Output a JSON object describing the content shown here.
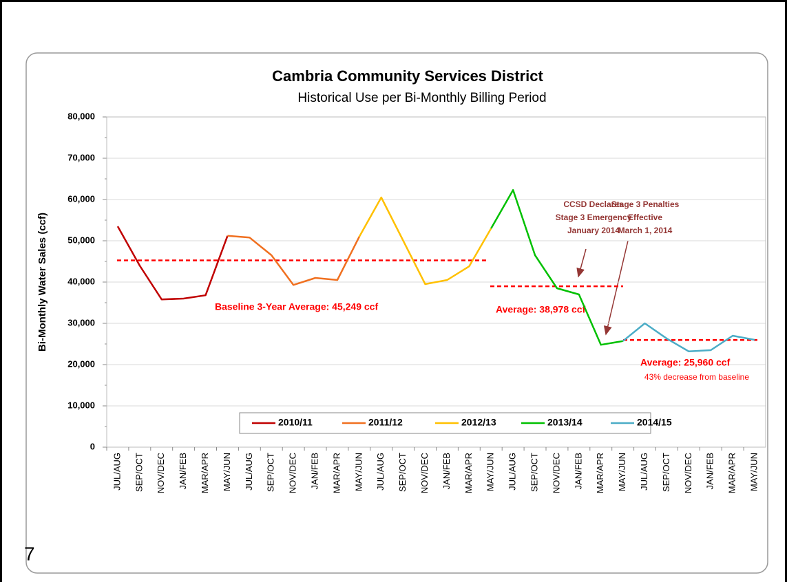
{
  "page_number": 7,
  "chart_data": {
    "type": "line",
    "title": "Cambria Community Services District",
    "subtitle": "Historical Use per Bi-Monthly Billing Period",
    "y_label": "Bi-Monthly Water Sales (ccf)",
    "categories": [
      "JUL/AUG",
      "SEP/OCT",
      "NOV/DEC",
      "JAN/FEB",
      "MAR/APR",
      "MAY/JUN",
      "JUL/AUG",
      "SEP/OCT",
      "NOV/DEC",
      "JAN/FEB",
      "MAR/APR",
      "MAY/JUN",
      "JUL/AUG",
      "SEP/OCT",
      "NOV/DEC",
      "JAN/FEB",
      "MAR/APR",
      "MAY/JUN",
      "JUL/AUG",
      "SEP/OCT",
      "NOV/DEC",
      "JAN/FEB",
      "MAR/APR",
      "MAY/JUN",
      "JUL/AUG",
      "SEP/OCT",
      "NOV/DEC",
      "JAN/FEB",
      "MAR/APR",
      "MAY/JUN"
    ],
    "series": [
      {
        "name": "2010/11",
        "color": "#c00000",
        "values": [
          53500,
          44000,
          35800,
          36000,
          36800,
          51200,
          null,
          null,
          null,
          null,
          null,
          null,
          null,
          null,
          null,
          null,
          null,
          null,
          null,
          null,
          null,
          null,
          null,
          null,
          null,
          null,
          null,
          null,
          null,
          null
        ]
      },
      {
        "name": "2011/12",
        "color": "#f07020",
        "values": [
          null,
          null,
          null,
          null,
          null,
          51200,
          50800,
          46500,
          39300,
          41000,
          40500,
          51000,
          null,
          null,
          null,
          null,
          null,
          null,
          null,
          null,
          null,
          null,
          null,
          null,
          null,
          null,
          null,
          null,
          null,
          null
        ]
      },
      {
        "name": "2012/13",
        "color": "#ffc000",
        "values": [
          null,
          null,
          null,
          null,
          null,
          null,
          null,
          null,
          null,
          null,
          null,
          51000,
          60500,
          50000,
          39500,
          40500,
          43800,
          53000,
          null,
          null,
          null,
          null,
          null,
          null,
          null,
          null,
          null,
          null,
          null,
          null
        ]
      },
      {
        "name": "2013/14",
        "color": "#00c000",
        "values": [
          null,
          null,
          null,
          null,
          null,
          null,
          null,
          null,
          null,
          null,
          null,
          null,
          null,
          null,
          null,
          null,
          null,
          53000,
          62300,
          46500,
          38500,
          37000,
          24800,
          25700,
          null,
          null,
          null,
          null,
          null,
          null
        ]
      },
      {
        "name": "2014/15",
        "color": "#4bacc6",
        "values": [
          null,
          null,
          null,
          null,
          null,
          null,
          null,
          null,
          null,
          null,
          null,
          null,
          null,
          null,
          null,
          null,
          null,
          null,
          null,
          null,
          null,
          null,
          null,
          25700,
          30000,
          26300,
          23200,
          23500,
          27000,
          26000
        ]
      }
    ],
    "reference_lines": [
      {
        "value": 45249,
        "label": "Baseline 3-Year Average:  45,249 ccf"
      },
      {
        "value": 38978,
        "label": "Average:  38,978 ccf"
      },
      {
        "value": 25960,
        "label": "Average:  25,960 ccf",
        "note": "43% decrease from baseline"
      }
    ],
    "annotations": [
      [
        "CCSD Declares",
        "Stage 3 Emergency",
        "January 2014"
      ],
      [
        "Stage 3 Penalties",
        "Effective",
        "March 1, 2014"
      ]
    ],
    "ylim": [
      0,
      80000
    ],
    "yticks": [
      0,
      {
        "value": 10000,
        "label": "10,000"
      },
      {
        "value": 20000,
        "label": "20,000"
      },
      {
        "value": 30000,
        "label": "30,000"
      },
      {
        "value": 40000,
        "label": "40,000"
      },
      {
        "value": 50000,
        "label": "50,000"
      },
      {
        "value": 60000,
        "label": "60,000"
      },
      {
        "value": 70000,
        "label": "70,000"
      },
      {
        "value": 80000,
        "label": "80,000"
      }
    ],
    "grid": true,
    "legend": "bottom"
  }
}
